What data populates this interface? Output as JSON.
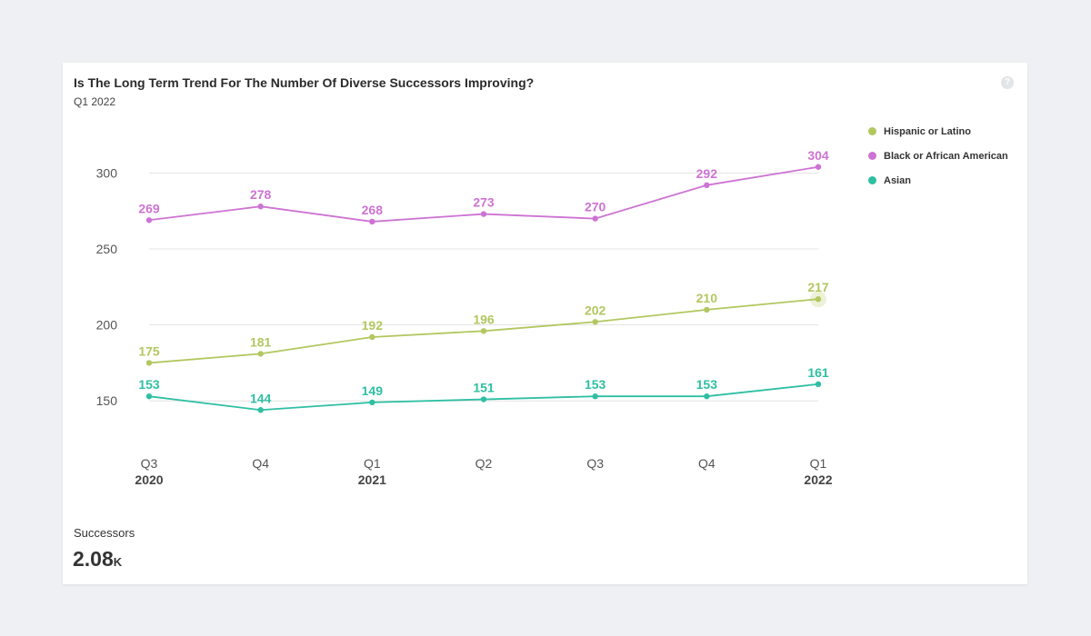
{
  "card": {
    "title": "Is The Long Term Trend For The Number Of Diverse Successors Improving?",
    "subtitle": "Q1 2022",
    "help_icon": "question-icon"
  },
  "metric": {
    "label": "Successors",
    "value": "2.08",
    "unit": "K"
  },
  "chart_data": {
    "type": "line",
    "categories": [
      "Q3",
      "Q4",
      "Q1",
      "Q2",
      "Q3",
      "Q4",
      "Q1"
    ],
    "category_years": [
      "2020",
      "",
      "2021",
      "",
      "",
      "",
      "2022"
    ],
    "ylim": [
      128,
      320
    ],
    "yticks": [
      150,
      200,
      250,
      300
    ],
    "grid": true,
    "legend_position": "right",
    "series": [
      {
        "name": "Hispanic or Latino",
        "color": "#b2c760",
        "values": [
          175,
          181,
          192,
          196,
          202,
          210,
          217
        ]
      },
      {
        "name": "Black or African American",
        "color": "#cd73d3",
        "values": [
          269,
          278,
          268,
          273,
          270,
          292,
          304
        ]
      },
      {
        "name": "Asian",
        "color": "#2fbfa2",
        "values": [
          153,
          144,
          149,
          151,
          153,
          153,
          161
        ]
      }
    ]
  }
}
